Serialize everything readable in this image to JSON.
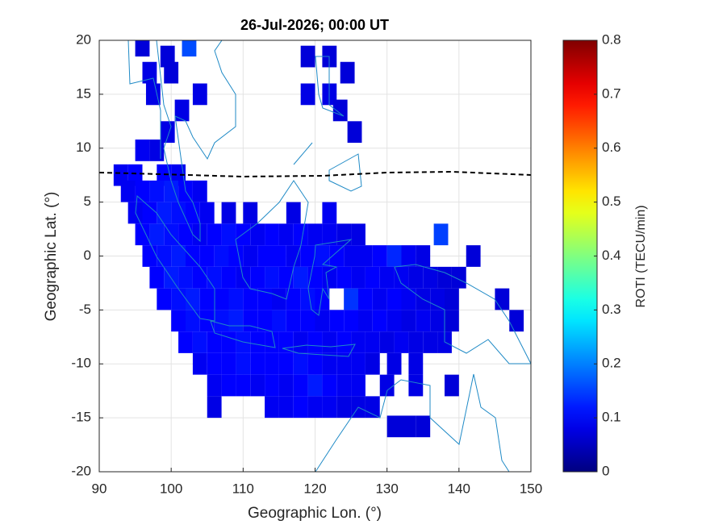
{
  "chart_data": {
    "type": "heatmap",
    "title": "26-Jul-2026; 00:00 UT",
    "x_label": "Geographic Lon. (°)",
    "y_label": "Geographic Lat. (°)",
    "colorbar_label": "ROTI (TECU/min)",
    "colormap": "jet",
    "grid": true,
    "xlim": [
      90,
      150
    ],
    "xticks": [
      90,
      100,
      110,
      120,
      130,
      140,
      150
    ],
    "ylim": [
      -20,
      20
    ],
    "yticks": [
      -20,
      -15,
      -10,
      -5,
      0,
      5,
      10,
      15,
      20
    ],
    "clim": [
      0,
      0.8
    ],
    "cticks": [
      0,
      0.1,
      0.2,
      0.3,
      0.4,
      0.5,
      0.6,
      0.7,
      0.8
    ],
    "rows": [
      {
        "lat": 19.5,
        "lon": [
          96,
          102.5
        ],
        "roti": [
          0.07,
          0.16
        ]
      },
      {
        "lat": 18.5,
        "lon": [
          99.5,
          119,
          122
        ],
        "roti": [
          0.07,
          0.07,
          0.07
        ]
      },
      {
        "lat": 17,
        "lon": [
          97,
          100,
          124.5
        ],
        "roti": [
          0.08,
          0.07,
          0.07
        ]
      },
      {
        "lat": 15,
        "lon": [
          97.5,
          104,
          119,
          122
        ],
        "roti": [
          0.08,
          0.08,
          0.08,
          0.08
        ]
      },
      {
        "lat": 13.5,
        "lon": [
          101.5,
          123.5
        ],
        "roti": [
          0.08,
          0.07
        ]
      },
      {
        "lat": 11.5,
        "lon": [
          99.5,
          125.5
        ],
        "roti": [
          0.08,
          0.07
        ]
      },
      {
        "lat": 9.8,
        "lon": [
          96,
          98
        ],
        "roti": [
          0.09,
          0.08
        ]
      },
      {
        "lat": 7.5,
        "lon": [
          93,
          95,
          99,
          101
        ],
        "roti": [
          0.09,
          0.1,
          0.1,
          0.09
        ]
      },
      {
        "lat": 6,
        "lon": [
          94,
          96,
          98,
          100,
          102,
          104
        ],
        "roti": [
          0.09,
          0.1,
          0.11,
          0.12,
          0.1,
          0.09
        ]
      },
      {
        "lat": 4,
        "lon": [
          95,
          97,
          99,
          101,
          103,
          105,
          108,
          111,
          117,
          122
        ],
        "roti": [
          0.09,
          0.1,
          0.12,
          0.11,
          0.1,
          0.09,
          0.08,
          0.08,
          0.08,
          0.09
        ]
      },
      {
        "lat": 2,
        "lon": [
          96,
          98,
          100,
          102,
          104,
          106,
          108,
          110,
          112,
          114,
          116,
          118,
          120,
          122,
          124,
          126,
          137.5
        ],
        "roti": [
          0.1,
          0.12,
          0.11,
          0.1,
          0.09,
          0.1,
          0.11,
          0.1,
          0.09,
          0.1,
          0.09,
          0.1,
          0.09,
          0.09,
          0.08,
          0.08,
          0.15
        ]
      },
      {
        "lat": 0,
        "lon": [
          97,
          99,
          101,
          103,
          105,
          107,
          109,
          111,
          113,
          115,
          117,
          119,
          121,
          123,
          125,
          127,
          129,
          131,
          133,
          135,
          142
        ],
        "roti": [
          0.1,
          0.11,
          0.12,
          0.1,
          0.1,
          0.11,
          0.1,
          0.09,
          0.1,
          0.1,
          0.09,
          0.1,
          0.11,
          0.1,
          0.09,
          0.09,
          0.1,
          0.13,
          0.09,
          0.08,
          0.07
        ]
      },
      {
        "lat": -2,
        "lon": [
          98,
          100,
          102,
          104,
          106,
          108,
          110,
          112,
          114,
          116,
          118,
          120,
          122,
          124,
          126,
          128,
          130,
          132,
          134,
          136,
          138,
          140
        ],
        "roti": [
          0.1,
          0.12,
          0.11,
          0.1,
          0.11,
          0.1,
          0.09,
          0.1,
          0.11,
          0.1,
          0.12,
          0.1,
          0.09,
          0.1,
          0.09,
          0.1,
          0.09,
          0.09,
          0.08,
          0.08,
          0.07,
          0.07
        ]
      },
      {
        "lat": -4,
        "lon": [
          99,
          101,
          103,
          105,
          107,
          109,
          111,
          113,
          115,
          117,
          119,
          121,
          125,
          127,
          129,
          131,
          133,
          135,
          137,
          139,
          146
        ],
        "roti": [
          0.1,
          0.11,
          0.12,
          0.1,
          0.1,
          0.11,
          0.1,
          0.1,
          0.09,
          0.1,
          0.11,
          0.1,
          0.14,
          0.1,
          0.09,
          0.1,
          0.09,
          0.08,
          0.08,
          0.07,
          0.07
        ]
      },
      {
        "lat": -6,
        "lon": [
          101,
          103,
          105,
          107,
          109,
          111,
          113,
          115,
          117,
          119,
          121,
          123,
          125,
          127,
          129,
          131,
          133,
          135,
          137,
          139,
          148
        ],
        "roti": [
          0.1,
          0.11,
          0.1,
          0.11,
          0.12,
          0.1,
          0.1,
          0.11,
          0.1,
          0.1,
          0.09,
          0.1,
          0.1,
          0.09,
          0.1,
          0.09,
          0.08,
          0.09,
          0.08,
          0.07,
          0.07
        ]
      },
      {
        "lat": -8,
        "lon": [
          102,
          104,
          106,
          108,
          110,
          112,
          114,
          116,
          118,
          120,
          122,
          124,
          126,
          128,
          130,
          132,
          134,
          136,
          138
        ],
        "roti": [
          0.1,
          0.11,
          0.1,
          0.1,
          0.11,
          0.1,
          0.1,
          0.1,
          0.09,
          0.1,
          0.09,
          0.1,
          0.09,
          0.09,
          0.08,
          0.09,
          0.08,
          0.08,
          0.08
        ]
      },
      {
        "lat": -10,
        "lon": [
          104,
          106,
          108,
          110,
          112,
          114,
          116,
          118,
          120,
          122,
          124,
          126,
          128,
          131,
          134
        ],
        "roti": [
          0.09,
          0.1,
          0.1,
          0.11,
          0.1,
          0.1,
          0.1,
          0.11,
          0.1,
          0.09,
          0.09,
          0.09,
          0.08,
          0.08,
          0.08
        ]
      },
      {
        "lat": -12,
        "lon": [
          106,
          108,
          110,
          112,
          114,
          116,
          118,
          120,
          122,
          124,
          126,
          130,
          134,
          139
        ],
        "roti": [
          0.09,
          0.1,
          0.1,
          0.09,
          0.1,
          0.09,
          0.1,
          0.12,
          0.1,
          0.09,
          0.09,
          0.08,
          0.08,
          0.07
        ]
      },
      {
        "lat": -14,
        "lon": [
          106,
          114,
          116,
          118,
          120,
          122,
          124,
          126,
          128
        ],
        "roti": [
          0.08,
          0.09,
          0.09,
          0.1,
          0.09,
          0.09,
          0.08,
          0.08,
          0.08
        ]
      },
      {
        "lat": -15.8,
        "lon": [
          131,
          133,
          135
        ],
        "roti": [
          0.07,
          0.07,
          0.07
        ]
      }
    ]
  }
}
